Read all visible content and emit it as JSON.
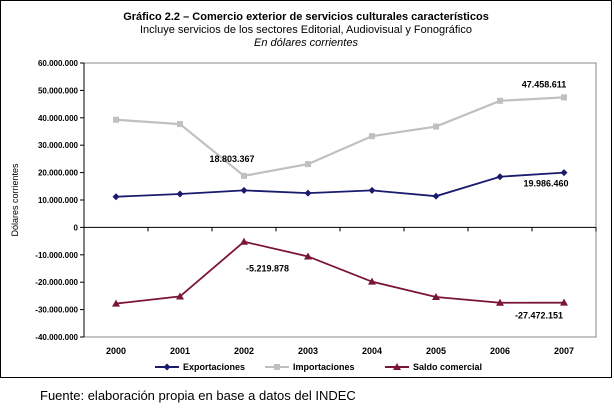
{
  "chart_data": {
    "type": "line",
    "title": "Gráfico 2.2 – Comercio exterior de servicios culturales característicos",
    "subtitle": "Incluye servicios de los sectores Editorial, Audiovisual y Fonográfico",
    "subtitle2": "En dólares corrientes",
    "xlabel": "",
    "ylabel": "Dólares corrientes",
    "ylim": [
      -40000000,
      60000000
    ],
    "yticks": [
      60000000,
      50000000,
      40000000,
      30000000,
      20000000,
      10000000,
      0,
      -10000000,
      -20000000,
      -30000000,
      -40000000
    ],
    "ytick_labels": [
      "60.000.000",
      "50.000.000",
      "40.000.000",
      "30.000.000",
      "20.000.000",
      "10.000.000",
      "0",
      "-10.000.000",
      "-20.000.000",
      "-30.000.000",
      "-40.000.000"
    ],
    "categories": [
      "2000",
      "2001",
      "2002",
      "2003",
      "2004",
      "2005",
      "2006",
      "2007"
    ],
    "grid": false,
    "legend_position": "bottom",
    "series": [
      {
        "name": "Exportaciones",
        "color": "#1a1a6e",
        "marker": "diamond",
        "values": [
          11200000,
          12200000,
          13500000,
          12500000,
          13500000,
          11400000,
          18500000,
          19986460
        ]
      },
      {
        "name": "Importaciones",
        "color": "#c0c0c0",
        "marker": "square",
        "values": [
          39300000,
          37700000,
          18803367,
          23100000,
          33300000,
          36800000,
          46200000,
          47458611
        ]
      },
      {
        "name": "Saldo comercial",
        "color": "#7a1538",
        "marker": "triangle",
        "values": [
          -27800000,
          -25200000,
          -5219878,
          -10600000,
          -19800000,
          -25400000,
          -27500000,
          -27472151
        ]
      }
    ],
    "annotations": [
      {
        "text": "18.803.367",
        "series": 1,
        "index": 2
      },
      {
        "text": "47.458.611",
        "series": 1,
        "index": 7
      },
      {
        "text": "19.986.460",
        "series": 0,
        "index": 7
      },
      {
        "text": "-5.219.878",
        "series": 2,
        "index": 2
      },
      {
        "text": "-27.472.151",
        "series": 2,
        "index": 7
      }
    ]
  },
  "source": "Fuente: elaboración propia en base a datos del INDEC"
}
